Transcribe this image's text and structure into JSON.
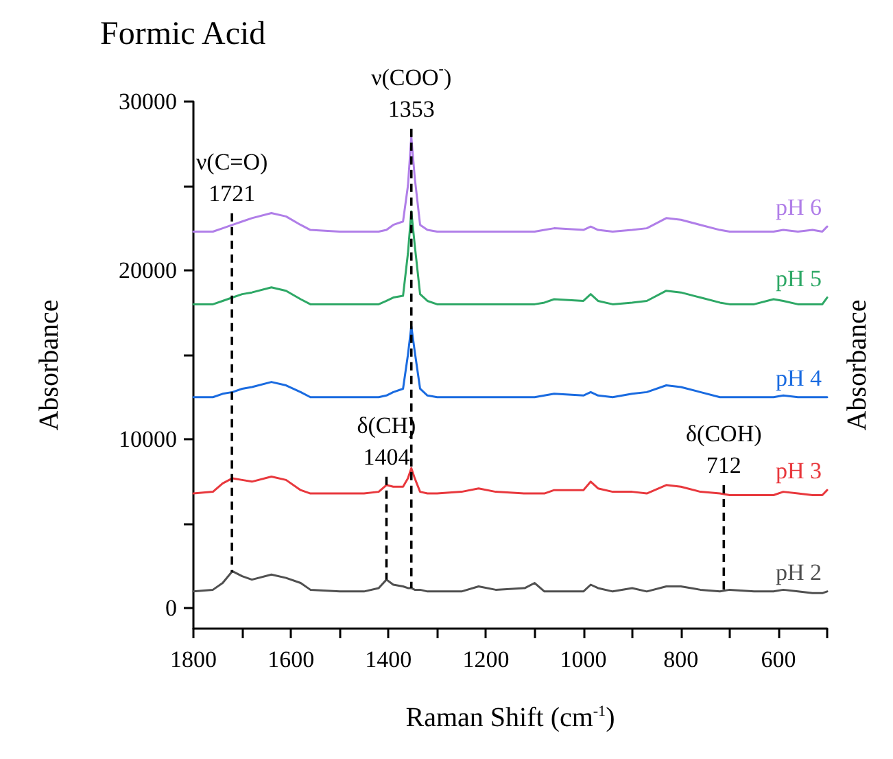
{
  "chart_data": {
    "type": "line",
    "title": "Formic Acid",
    "xlabel": "Raman Shift (cm$^{-1}$)",
    "ylabel": "Absorbance",
    "y2label": "Absorbance",
    "x": [
      1800,
      1760,
      1740,
      1720,
      1700,
      1680,
      1640,
      1610,
      1580,
      1560,
      1500,
      1450,
      1420,
      1404,
      1390,
      1370,
      1360,
      1353,
      1346,
      1335,
      1320,
      1300,
      1250,
      1215,
      1180,
      1120,
      1100,
      1080,
      1060,
      1000,
      985,
      970,
      940,
      900,
      870,
      830,
      800,
      760,
      720,
      700,
      650,
      610,
      590,
      560,
      530,
      510,
      500
    ],
    "series": [
      {
        "name": "pH 6",
        "color": "#b07ee8",
        "values": [
          22300,
          22300,
          22500,
          22700,
          22900,
          23100,
          23400,
          23200,
          22700,
          22400,
          22300,
          22300,
          22300,
          22400,
          22700,
          22900,
          25000,
          27900,
          25500,
          22700,
          22400,
          22300,
          22300,
          22300,
          22300,
          22300,
          22300,
          22400,
          22500,
          22400,
          22600,
          22400,
          22300,
          22400,
          22500,
          23100,
          23000,
          22700,
          22400,
          22300,
          22300,
          22300,
          22400,
          22300,
          22400,
          22300,
          22600
        ]
      },
      {
        "name": "pH 5",
        "color": "#2ea866",
        "values": [
          18000,
          18000,
          18200,
          18400,
          18600,
          18700,
          19000,
          18800,
          18300,
          18000,
          18000,
          18000,
          18000,
          18200,
          18400,
          18500,
          21000,
          23500,
          21500,
          18600,
          18200,
          18000,
          18000,
          18000,
          18000,
          18000,
          18000,
          18100,
          18300,
          18200,
          18600,
          18200,
          18000,
          18100,
          18200,
          18800,
          18700,
          18400,
          18100,
          18000,
          18000,
          18300,
          18200,
          18000,
          18000,
          18000,
          18400
        ]
      },
      {
        "name": "pH 4",
        "color": "#1a6be0",
        "values": [
          12500,
          12500,
          12700,
          12800,
          13000,
          13100,
          13400,
          13200,
          12800,
          12500,
          12500,
          12500,
          12500,
          12600,
          12800,
          13000,
          15000,
          16700,
          15200,
          13000,
          12600,
          12500,
          12500,
          12500,
          12500,
          12500,
          12500,
          12600,
          12700,
          12600,
          12800,
          12600,
          12500,
          12700,
          12800,
          13200,
          13100,
          12800,
          12500,
          12500,
          12500,
          12500,
          12600,
          12500,
          12500,
          12500,
          12500
        ]
      },
      {
        "name": "pH 3",
        "color": "#e8383d",
        "values": [
          6800,
          6900,
          7400,
          7700,
          7600,
          7500,
          7800,
          7600,
          7000,
          6800,
          6800,
          6800,
          6900,
          7300,
          7200,
          7200,
          7700,
          8300,
          7700,
          6900,
          6800,
          6800,
          6900,
          7100,
          6900,
          6800,
          6800,
          6800,
          7000,
          7000,
          7500,
          7100,
          6900,
          6900,
          6800,
          7300,
          7200,
          6900,
          6800,
          6700,
          6700,
          6700,
          6900,
          6800,
          6700,
          6700,
          7000
        ]
      },
      {
        "name": "pH 2",
        "color": "#505050",
        "values": [
          1000,
          1100,
          1500,
          2200,
          1900,
          1700,
          2000,
          1800,
          1500,
          1100,
          1000,
          1000,
          1200,
          1700,
          1400,
          1300,
          1200,
          1200,
          1100,
          1100,
          1000,
          1000,
          1000,
          1300,
          1100,
          1200,
          1500,
          1000,
          1000,
          1000,
          1400,
          1200,
          1000,
          1200,
          1000,
          1300,
          1300,
          1100,
          1000,
          1100,
          1000,
          1000,
          1100,
          1000,
          900,
          900,
          1000
        ]
      }
    ],
    "ref_lines": [
      {
        "axis": "x",
        "value": 1721,
        "label": "ν(C=O)\n1721",
        "color": "#000000",
        "line_style": "dashed"
      },
      {
        "axis": "x",
        "value": 1353,
        "label": "ν(COO$^{-}$)\n1353",
        "color": "#000000",
        "line_style": "dashed"
      },
      {
        "axis": "x",
        "value": 1404,
        "label": "δ(CH)\n1404",
        "color": "#000000",
        "line_style": "dashed"
      },
      {
        "axis": "x",
        "value": 712,
        "label": "δ(COH)\n712",
        "color": "#000000",
        "line_style": "dashed"
      }
    ],
    "xlim": [
      1800,
      500
    ],
    "ylim": [
      -1200,
      30000
    ],
    "xticks": [
      1800,
      {
        "value": 1700,
        "label": null
      },
      1600,
      {
        "value": 1500,
        "label": null
      },
      1400,
      {
        "value": 1300,
        "label": null
      },
      1200,
      {
        "value": 1100,
        "label": null
      },
      1000,
      {
        "value": 900,
        "label": null
      },
      800,
      {
        "value": 700,
        "label": null
      },
      600,
      {
        "value": 500,
        "label": null
      }
    ],
    "yticks": [
      0,
      {
        "value": 5000,
        "label": null
      },
      10000,
      {
        "value": 15000,
        "label": null
      },
      20000,
      {
        "value": 25000,
        "label": null
      },
      30000
    ],
    "legend": false,
    "grid": false,
    "marker": "none",
    "line_style": "solid"
  }
}
